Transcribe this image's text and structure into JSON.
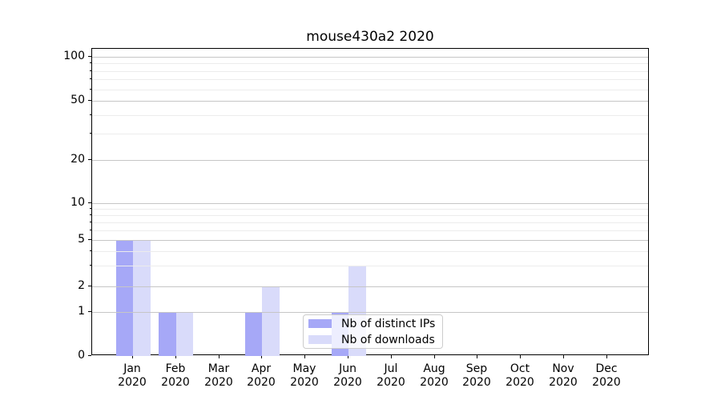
{
  "title": "mouse430a2 2020",
  "colors": {
    "distinct_ips": "#a6a8f7",
    "downloads": "#d9dbfa",
    "grid_major": "#c6c6c6",
    "grid_minor": "#ececec",
    "spine": "#000000",
    "legend_border": "#cccccc",
    "background": "#ffffff"
  },
  "legend": {
    "items": [
      {
        "label": "Nb of distinct IPs",
        "color_key": "distinct_ips"
      },
      {
        "label": "Nb of downloads",
        "color_key": "downloads"
      }
    ]
  },
  "y_axis": {
    "tick_values": [
      0,
      1,
      2,
      5,
      10,
      20,
      50,
      100
    ],
    "tick_labels": [
      "0",
      "1",
      "2",
      "5",
      "10",
      "20",
      "50",
      "100"
    ],
    "minor_values": [
      3,
      4,
      6,
      7,
      8,
      9,
      30,
      40,
      60,
      70,
      80,
      90
    ]
  },
  "x_axis": {
    "months": [
      "Jan",
      "Feb",
      "Mar",
      "Apr",
      "May",
      "Jun",
      "Jul",
      "Aug",
      "Sep",
      "Oct",
      "Nov",
      "Dec"
    ],
    "year_label": "2020"
  },
  "chart_data": {
    "type": "bar",
    "title": "mouse430a2 2020",
    "categories": [
      "Jan 2020",
      "Feb 2020",
      "Mar 2020",
      "Apr 2020",
      "May 2020",
      "Jun 2020",
      "Jul 2020",
      "Aug 2020",
      "Sep 2020",
      "Oct 2020",
      "Nov 2020",
      "Dec 2020"
    ],
    "series": [
      {
        "name": "Nb of distinct IPs",
        "color": "#a6a8f7",
        "values": [
          5,
          1,
          0,
          1,
          0,
          1,
          0,
          0,
          0,
          0,
          0,
          0
        ]
      },
      {
        "name": "Nb of downloads",
        "color": "#d9dbfa",
        "values": [
          5,
          1,
          0,
          2,
          0,
          3,
          0,
          0,
          0,
          0,
          0,
          0
        ]
      }
    ],
    "xlabel": "",
    "ylabel": "",
    "yscale": "log above 1, linear 0-1 (symlog-like)",
    "yticks": [
      0,
      1,
      2,
      5,
      10,
      20,
      50,
      100
    ],
    "yminor_ticks": [
      3,
      4,
      6,
      7,
      8,
      9,
      30,
      40,
      60,
      70,
      80,
      90
    ],
    "ylim": [
      0,
      115
    ],
    "grid": true,
    "grid_over_bars": true,
    "legend_position": "inside axes, lower middle"
  }
}
